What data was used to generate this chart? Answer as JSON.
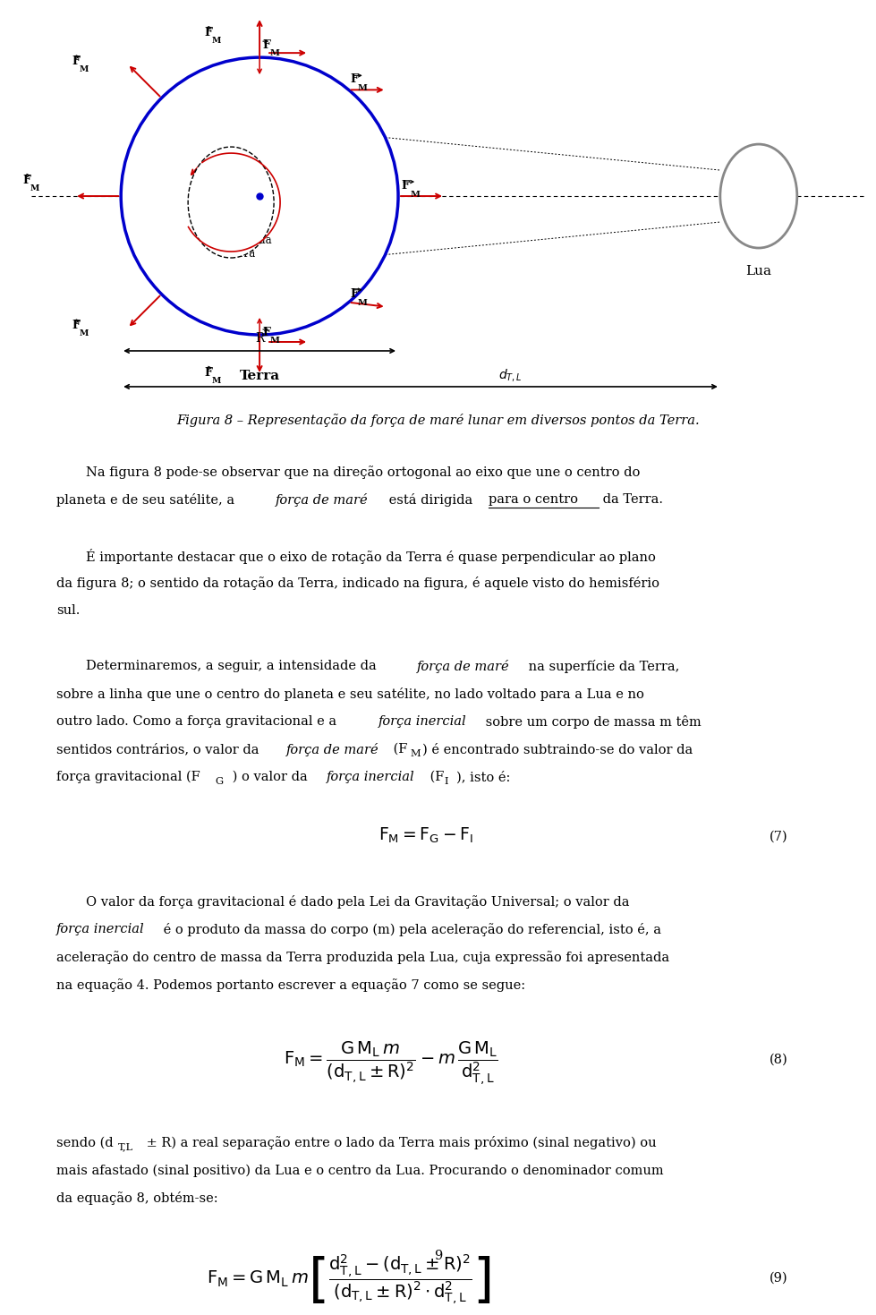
{
  "bg_color": "#ffffff",
  "fig_width": 9.6,
  "fig_height": 14.12,
  "earth_color": "#0000cc",
  "moon_color": "#888888",
  "arrow_color": "#cc0000",
  "title_italic": "Figura 8 – Representação da força de maré lunar em diversos pontos da Terra.",
  "p1a": "Na figura 8 pode-se observar que na direção ortogonal ao eixo que une o centro do",
  "p1b_plain1": "planeta e de seu satélite, a ",
  "p1b_italic": "força de maré",
  "p1b_plain2": " está dirigida ",
  "p1b_under": "para o centro",
  "p1b_plain3": " da Terra.",
  "p2_indent": "É importante destacar que o eixo de rotação da Terra é quase perpendicular ao plano",
  "p2b": "da figura 8; o sentido da rotação da Terra, indicado na figura, é aquele visto do hemisfério",
  "p2c": "sul.",
  "p3_indent_a": "Determinaremos, a seguir, a intensidade da ",
  "p3_indent_ai": "força de maré",
  "p3_indent_a2": " na superfície da Terra,",
  "p3b": "sobre a linha que une o centro do planeta e seu satélite, no lado voltado para a Lua e no",
  "p3c_a": "outro lado. Como a força gravitacional e a ",
  "p3c_i": "força inercial",
  "p3c_b": " sobre um corpo de massa m têm",
  "p3d_a": "sentidos contrários, o valor da ",
  "p3d_i": "força de maré",
  "p3d_b": " (F",
  "p3d_sub": "M",
  "p3d_c": ") é encontrado subtraindo-se do valor da",
  "p3e_a": "força gravitacional (F",
  "p3e_sub1": "G",
  "p3e_b": " ) o valor da ",
  "p3e_i": "força inercial",
  "p3e_c": " (F",
  "p3e_sub2": "I",
  "p3e_d": "), isto é:",
  "eq7": "$F_M =F_G -F_I$",
  "eq7_num": "(7)",
  "p4_indent": "O valor da força gravitacional é dado pela Lei da Gravitação Universal; o valor da",
  "p4b_i": "força inercial",
  "p4b_a": " é o produto da massa do corpo (m) pela aceleração do referencial, isto é, a",
  "p4c": "aceleração do centro de massa da Terra produzida pela Lua, cuja expressão foi apresentada",
  "p4d": "na equação 4. Podemos portanto escrever a equação 7 como se segue:",
  "eq8_num": "(8)",
  "p5_a": "sendo (d",
  "p5_sub": "T,L",
  "p5_b": " ± R) a real separação entre o lado da Terra mais próximo (sinal negativo) ou",
  "p5c": "mais afastado (sinal positivo) da Lua e o centro da Lua. Procurando o denominador comum",
  "p5d": "da equação 8, obtém-se:",
  "eq9_num": "(9)",
  "page_num": "9"
}
